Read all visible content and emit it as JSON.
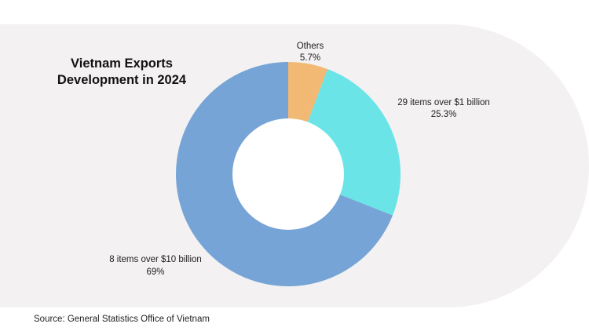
{
  "chart_data": {
    "type": "pie",
    "variant": "donut",
    "title": "Vietnam Exports Development in 2024",
    "title_lines": [
      "Vietnam Exports",
      "Development in 2024"
    ],
    "slices": [
      {
        "name": "Others",
        "value": 5.7,
        "label": "5.7%",
        "color": "#f2b974"
      },
      {
        "name": "29 items over $1 billion",
        "value": 25.3,
        "label": "25.3%",
        "color": "#6be4e8"
      },
      {
        "name": "8 items over $10 billion",
        "value": 69,
        "label": "69%",
        "color": "#76a4d6"
      }
    ]
  },
  "source": "Source: General Statistics Office of Vietnam",
  "colors": {
    "panel_background": "#f3f1f2",
    "page_background": "#ffffff",
    "donut_hole": "#ffffff",
    "text": "#111111"
  }
}
